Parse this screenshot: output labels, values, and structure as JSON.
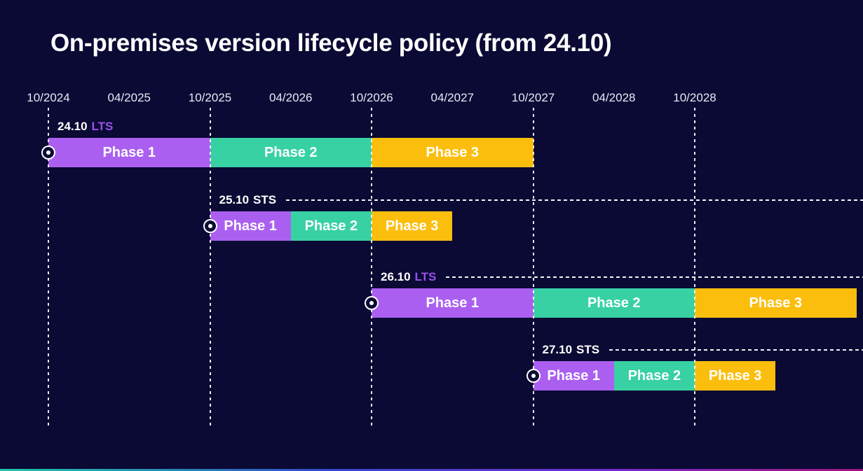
{
  "title": "On-premises version lifecycle policy (from 24.10)",
  "axis": {
    "ticks": [
      "10/2024",
      "04/2025",
      "10/2025",
      "04/2026",
      "10/2026",
      "04/2027",
      "10/2027",
      "04/2028",
      "10/2028"
    ]
  },
  "rows": [
    {
      "version": "24.10",
      "channel": "LTS",
      "phases": [
        {
          "label": "Phase 1",
          "start": "10/2024",
          "end": "10/2025"
        },
        {
          "label": "Phase 2",
          "start": "10/2025",
          "end": "10/2026"
        },
        {
          "label": "Phase 3",
          "start": "10/2026",
          "end": "10/2027"
        }
      ]
    },
    {
      "version": "25.10",
      "channel": "STS",
      "phases": [
        {
          "label": "Phase 1",
          "start": "10/2025",
          "end": "04/2026"
        },
        {
          "label": "Phase 2",
          "start": "04/2026",
          "end": "10/2026"
        },
        {
          "label": "Phase 3",
          "start": "10/2026",
          "end": "04/2027"
        }
      ]
    },
    {
      "version": "26.10",
      "channel": "LTS",
      "phases": [
        {
          "label": "Phase 1",
          "start": "10/2026",
          "end": "10/2027"
        },
        {
          "label": "Phase 2",
          "start": "10/2027",
          "end": "10/2028"
        },
        {
          "label": "Phase 3",
          "start": "10/2028",
          "end": "10/2029"
        }
      ]
    },
    {
      "version": "27.10",
      "channel": "STS",
      "phases": [
        {
          "label": "Phase 1",
          "start": "10/2027",
          "end": "04/2028"
        },
        {
          "label": "Phase 2",
          "start": "04/2028",
          "end": "10/2028"
        },
        {
          "label": "Phase 3",
          "start": "10/2028",
          "end": "04/2029"
        }
      ]
    }
  ],
  "colors": {
    "background": "#0a0a34",
    "phase1": "#ab5ff0",
    "phase2": "#38d1a4",
    "phase3": "#fcbe0d",
    "lts_badge_text": "#9b51e8",
    "sts_badge_text": "#ffffff",
    "title_text": "#ffffff",
    "axis_text": "#eae7f5",
    "gridline": "#ffffff",
    "footer_gradient": [
      "#1cc9a6",
      "#3349c6",
      "#6f2ed0",
      "#a01280"
    ]
  },
  "chart_data": {
    "type": "bar",
    "subtype": "gantt-timeline",
    "title": "On-premises version lifecycle policy (from 24.10)",
    "xlabel": "",
    "ylabel": "",
    "x_axis": {
      "tick_labels": [
        "10/2024",
        "04/2025",
        "10/2025",
        "04/2026",
        "10/2026",
        "04/2027",
        "10/2027",
        "04/2028",
        "10/2028"
      ],
      "range": [
        "10/2024",
        "10/2029"
      ],
      "gridlines_at": [
        "10/2024",
        "10/2025",
        "10/2026",
        "10/2027",
        "10/2028"
      ],
      "grid": "dashed-vertical-on-october-ticks"
    },
    "legend_position": "none",
    "series": [
      {
        "name": "24.10 LTS",
        "segments": [
          {
            "label": "Phase 1",
            "start": "10/2024",
            "end": "10/2025",
            "duration_months": 12,
            "color": "#ab5ff0"
          },
          {
            "label": "Phase 2",
            "start": "10/2025",
            "end": "10/2026",
            "duration_months": 12,
            "color": "#38d1a4"
          },
          {
            "label": "Phase 3",
            "start": "10/2026",
            "end": "10/2027",
            "duration_months": 12,
            "color": "#fcbe0d"
          }
        ]
      },
      {
        "name": "25.10 STS",
        "segments": [
          {
            "label": "Phase 1",
            "start": "10/2025",
            "end": "04/2026",
            "duration_months": 6,
            "color": "#ab5ff0"
          },
          {
            "label": "Phase 2",
            "start": "04/2026",
            "end": "10/2026",
            "duration_months": 6,
            "color": "#38d1a4"
          },
          {
            "label": "Phase 3",
            "start": "10/2026",
            "end": "04/2027",
            "duration_months": 6,
            "color": "#fcbe0d"
          }
        ]
      },
      {
        "name": "26.10 LTS",
        "segments": [
          {
            "label": "Phase 1",
            "start": "10/2026",
            "end": "10/2027",
            "duration_months": 12,
            "color": "#ab5ff0"
          },
          {
            "label": "Phase 2",
            "start": "10/2027",
            "end": "10/2028",
            "duration_months": 12,
            "color": "#38d1a4"
          },
          {
            "label": "Phase 3",
            "start": "10/2028",
            "end": "10/2029",
            "duration_months": 12,
            "color": "#fcbe0d"
          }
        ]
      },
      {
        "name": "27.10 STS",
        "segments": [
          {
            "label": "Phase 1",
            "start": "10/2027",
            "end": "04/2028",
            "duration_months": 6,
            "color": "#ab5ff0"
          },
          {
            "label": "Phase 2",
            "start": "04/2028",
            "end": "10/2028",
            "duration_months": 6,
            "color": "#38d1a4"
          },
          {
            "label": "Phase 3",
            "start": "10/2028",
            "end": "04/2029",
            "duration_months": 6,
            "color": "#fcbe0d"
          }
        ]
      }
    ],
    "annotations": "Each release row starts with a circled-dot marker at its release date; rows 2-4 have a dashed leader line from the version label to the right edge."
  }
}
